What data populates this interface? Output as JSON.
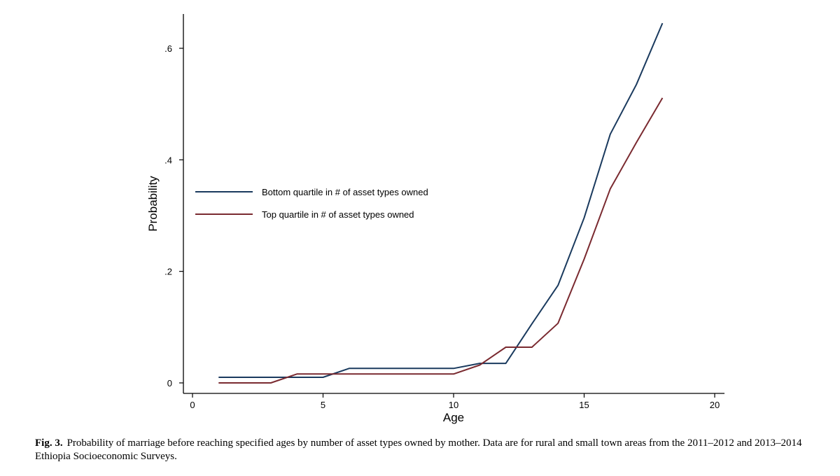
{
  "chart_data": {
    "type": "line",
    "xlabel": "Age",
    "ylabel": "Probability",
    "xlim": [
      0,
      20
    ],
    "ylim": [
      0,
      0.65
    ],
    "x_ticks": [
      0,
      5,
      10,
      15,
      20
    ],
    "x_tick_labels": [
      "0",
      "5",
      "10",
      "15",
      "20"
    ],
    "y_ticks": [
      0,
      0.2,
      0.4,
      0.6
    ],
    "y_tick_labels": [
      "0",
      ".2",
      ".4",
      ".6"
    ],
    "grid": false,
    "legend_position": "center-left",
    "series": [
      {
        "name": "Bottom quartile in # of asset types owned",
        "color": "#1a3a5e",
        "x": [
          1,
          2,
          3,
          4,
          5,
          6,
          7,
          8,
          9,
          10,
          11,
          12,
          13,
          14,
          15,
          16,
          17,
          18
        ],
        "y": [
          0.01,
          0.01,
          0.01,
          0.01,
          0.01,
          0.026,
          0.026,
          0.026,
          0.026,
          0.026,
          0.035,
          0.035,
          0.106,
          0.175,
          0.296,
          0.446,
          0.535,
          0.645
        ]
      },
      {
        "name": "Top quartile in # of asset types owned",
        "color": "#7a2a30",
        "x": [
          1,
          2,
          3,
          4,
          5,
          6,
          7,
          8,
          9,
          10,
          11,
          12,
          13,
          14,
          15,
          16,
          17,
          18
        ],
        "y": [
          0.0,
          0.0,
          0.0,
          0.016,
          0.016,
          0.016,
          0.016,
          0.016,
          0.016,
          0.016,
          0.032,
          0.064,
          0.064,
          0.107,
          0.222,
          0.348,
          0.431,
          0.511
        ]
      }
    ]
  },
  "caption": {
    "label": "Fig. 3.",
    "text": "Probability of marriage before reaching specified ages by number of asset types owned by mother. Data are for rural and small town areas from the 2011–2012 and 2013–2014 Ethiopia Socioeconomic Surveys."
  }
}
